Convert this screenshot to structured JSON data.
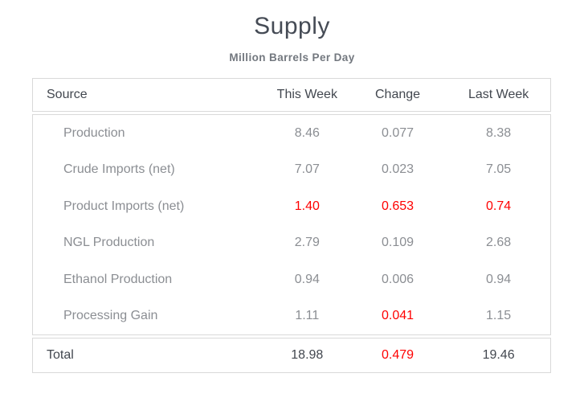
{
  "title": "Supply",
  "subtitle": "Million Barrels Per Day",
  "colors": {
    "title_text": "#454b55",
    "subtitle_text": "#73787f",
    "header_text": "#42474f",
    "row_text": "#8b8e93",
    "highlight_red": "#ff0000",
    "table_border": "#d9d9d9",
    "background": "#ffffff"
  },
  "chart_data": {
    "type": "table",
    "title": "Supply",
    "subtitle": "Million Barrels Per Day",
    "columns": [
      "Source",
      "This Week",
      "Change",
      "Last Week"
    ],
    "rows": [
      {
        "source": "Production",
        "this_week": "8.46",
        "change": "0.077",
        "last_week": "8.38",
        "styles": [
          "",
          "",
          ""
        ]
      },
      {
        "source": "Crude Imports (net)",
        "this_week": "7.07",
        "change": "0.023",
        "last_week": "7.05",
        "styles": [
          "",
          "",
          ""
        ]
      },
      {
        "source": "Product Imports (net)",
        "this_week": "1.40",
        "change": "0.653",
        "last_week": "0.74",
        "styles": [
          "red",
          "red",
          "red"
        ]
      },
      {
        "source": "NGL Production",
        "this_week": "2.79",
        "change": "0.109",
        "last_week": "2.68",
        "styles": [
          "",
          "",
          ""
        ]
      },
      {
        "source": "Ethanol Production",
        "this_week": "0.94",
        "change": "0.006",
        "last_week": "0.94",
        "styles": [
          "",
          "",
          ""
        ]
      },
      {
        "source": "Processing Gain",
        "this_week": "1.11",
        "change": "0.041",
        "last_week": "1.15",
        "styles": [
          "",
          "red",
          ""
        ]
      }
    ],
    "total": {
      "source": "Total",
      "this_week": "18.98",
      "change": "0.479",
      "last_week": "19.46",
      "styles": [
        "",
        "red",
        ""
      ]
    }
  }
}
